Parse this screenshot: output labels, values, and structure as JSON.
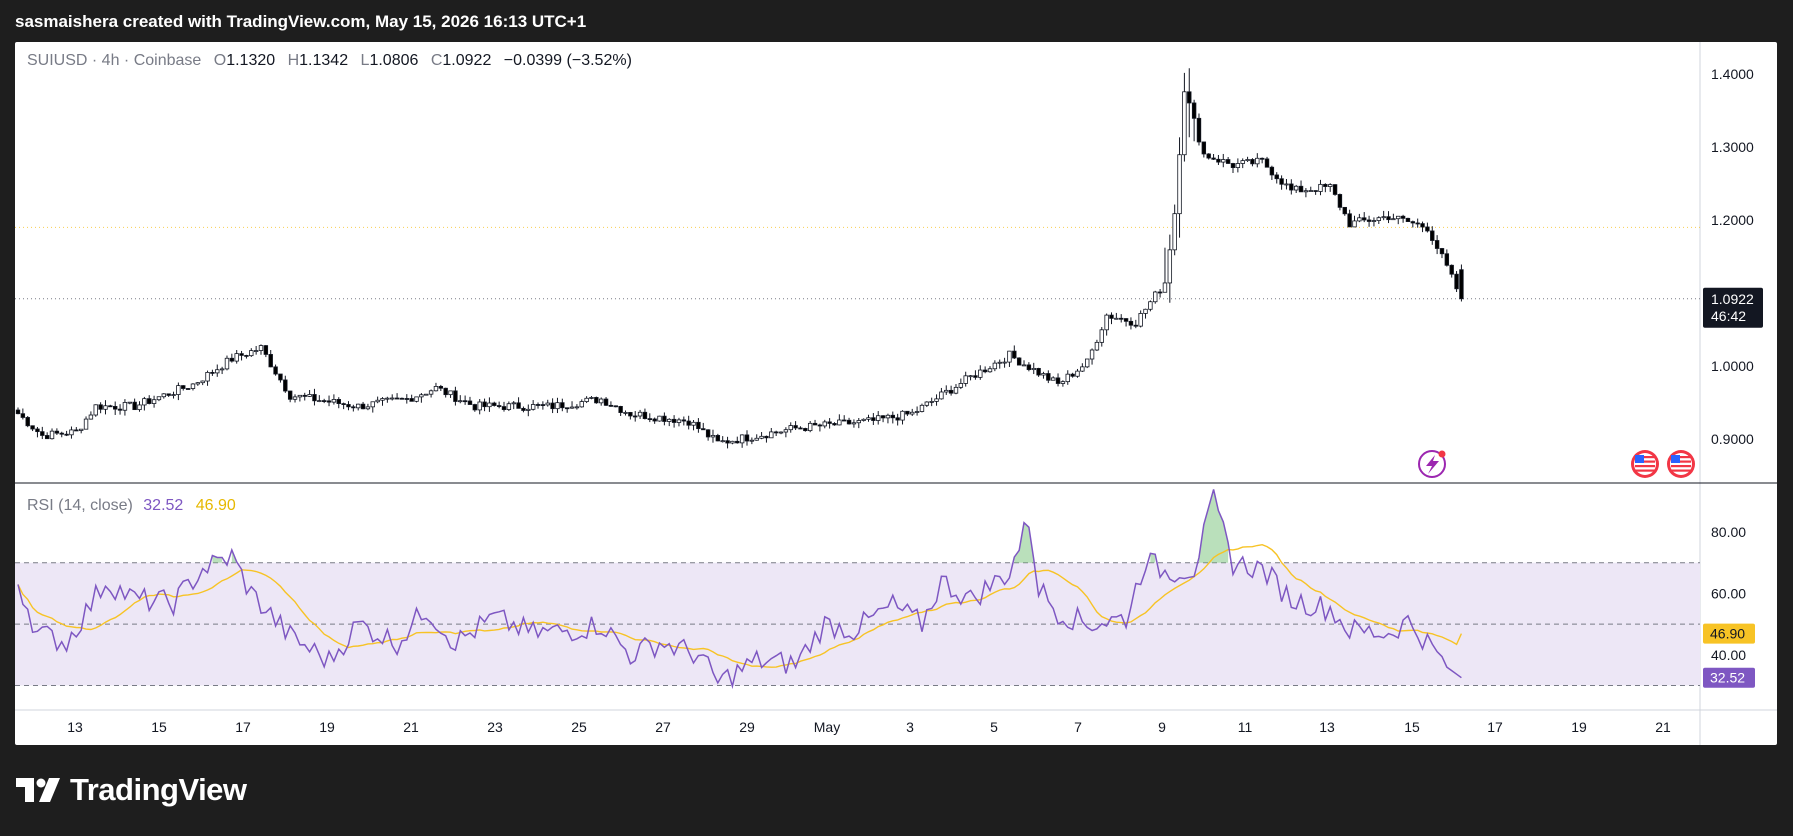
{
  "header": {
    "credit": "sasmaishera created with TradingView.com, May 15, 2026 16:13 UTC+1"
  },
  "legend": {
    "symbol": "SUIUSD · 4h · Coinbase",
    "open_label": "O",
    "open": "1.1320",
    "high_label": "H",
    "high": "1.1342",
    "low_label": "L",
    "low": "1.0806",
    "close_label": "C",
    "close": "1.0922",
    "change": "−0.0399 (−3.52%)"
  },
  "rsi_legend": {
    "label": "RSI (14, close)",
    "rsi_value": "32.52",
    "ma_value": "46.90"
  },
  "price_badge": {
    "price": "1.0922",
    "countdown": "46:42"
  },
  "brand": {
    "name": "TradingView"
  },
  "colors": {
    "up": "#ffffff",
    "down": "#000000",
    "wick": "#131722",
    "rsi": "#7e57c2",
    "rsi_ma": "#f7c325",
    "rsi_band": "#ede7f6"
  },
  "chart_data": {
    "type": "candlestick",
    "price_axis": {
      "min": 0.84,
      "max": 1.43,
      "ticks": [
        "1.4000",
        "1.3000",
        "1.2000",
        "1.1000",
        "1.0000",
        "0.9000"
      ]
    },
    "rsi_axis": {
      "min": 22,
      "max": 96,
      "ticks": [
        "80.00",
        "60.00",
        "40.00"
      ],
      "bands": [
        70,
        50,
        30
      ]
    },
    "x_labels": [
      "13",
      "15",
      "17",
      "19",
      "21",
      "23",
      "25",
      "27",
      "29",
      "May",
      "3",
      "5",
      "7",
      "9",
      "11",
      "13",
      "15",
      "17",
      "19",
      "21"
    ],
    "price_keypoints": [
      [
        0,
        0.935
      ],
      [
        5,
        0.905
      ],
      [
        12,
        0.91
      ],
      [
        16,
        0.945
      ],
      [
        24,
        0.945
      ],
      [
        36,
        0.975
      ],
      [
        44,
        1.01
      ],
      [
        50,
        1.025
      ],
      [
        56,
        0.96
      ],
      [
        70,
        0.945
      ],
      [
        80,
        0.955
      ],
      [
        86,
        0.97
      ],
      [
        94,
        0.945
      ],
      [
        110,
        0.945
      ],
      [
        120,
        0.955
      ],
      [
        126,
        0.935
      ],
      [
        138,
        0.925
      ],
      [
        144,
        0.895
      ],
      [
        160,
        0.915
      ],
      [
        176,
        0.925
      ],
      [
        184,
        0.935
      ],
      [
        196,
        0.985
      ],
      [
        204,
        1.015
      ],
      [
        214,
        0.975
      ],
      [
        220,
        1.005
      ],
      [
        224,
        1.07
      ],
      [
        230,
        1.06
      ],
      [
        236,
        1.115
      ],
      [
        238,
        1.21
      ],
      [
        240,
        1.38
      ],
      [
        244,
        1.29
      ],
      [
        250,
        1.275
      ],
      [
        256,
        1.28
      ],
      [
        262,
        1.24
      ],
      [
        270,
        1.245
      ],
      [
        274,
        1.195
      ],
      [
        282,
        1.205
      ],
      [
        290,
        1.19
      ],
      [
        294,
        1.135
      ],
      [
        297,
        1.0922
      ]
    ],
    "rsi_keypoints": [
      [
        0,
        64
      ],
      [
        4,
        47
      ],
      [
        10,
        44
      ],
      [
        18,
        64
      ],
      [
        24,
        58
      ],
      [
        32,
        57
      ],
      [
        38,
        68
      ],
      [
        44,
        72
      ],
      [
        48,
        60
      ],
      [
        56,
        46
      ],
      [
        64,
        38
      ],
      [
        70,
        50
      ],
      [
        78,
        44
      ],
      [
        84,
        55
      ],
      [
        90,
        44
      ],
      [
        98,
        52
      ],
      [
        106,
        47
      ],
      [
        114,
        48
      ],
      [
        120,
        50
      ],
      [
        126,
        40
      ],
      [
        132,
        44
      ],
      [
        140,
        40
      ],
      [
        144,
        31
      ],
      [
        152,
        38
      ],
      [
        160,
        37
      ],
      [
        166,
        50
      ],
      [
        172,
        48
      ],
      [
        180,
        56
      ],
      [
        186,
        50
      ],
      [
        190,
        64
      ],
      [
        196,
        58
      ],
      [
        204,
        67
      ],
      [
        208,
        84
      ],
      [
        210,
        62
      ],
      [
        214,
        54
      ],
      [
        220,
        50
      ],
      [
        228,
        52
      ],
      [
        232,
        71
      ],
      [
        236,
        67
      ],
      [
        242,
        68
      ],
      [
        246,
        90
      ],
      [
        250,
        70
      ],
      [
        256,
        68
      ],
      [
        262,
        58
      ],
      [
        270,
        55
      ],
      [
        274,
        48
      ],
      [
        282,
        47
      ],
      [
        286,
        51
      ],
      [
        290,
        44
      ],
      [
        294,
        36
      ],
      [
        297,
        32.52
      ]
    ],
    "rsi_ma_last": 46.9
  }
}
